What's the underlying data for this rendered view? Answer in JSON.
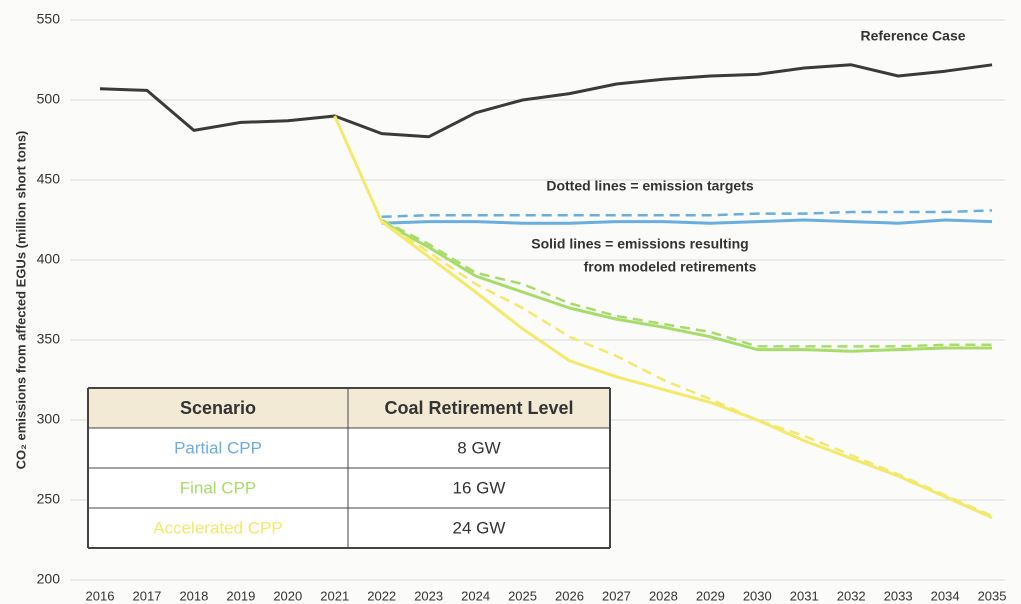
{
  "chart_data": {
    "type": "line",
    "ylabel": "CO₂ emissions from affected EGUs (million short tons)",
    "categories": [
      "2016",
      "2017",
      "2018",
      "2019",
      "2020",
      "2021",
      "2022",
      "2023",
      "2024",
      "2025",
      "2026",
      "2027",
      "2028",
      "2029",
      "2030",
      "2031",
      "2032",
      "2033",
      "2034",
      "2035"
    ],
    "ylim": [
      200,
      550
    ],
    "yticks": [
      200,
      250,
      300,
      350,
      400,
      450,
      500,
      550
    ],
    "grid": true,
    "series": [
      {
        "name": "Reference Case",
        "color": "#3a3a3a",
        "dashed": false,
        "values": [
          507,
          506,
          481,
          486,
          487,
          490,
          479,
          477,
          492,
          500,
          504,
          510,
          513,
          515,
          516,
          520,
          522,
          515,
          518,
          522
        ]
      },
      {
        "color": "#6aaee0",
        "dashed": false,
        "values": [
          null,
          null,
          null,
          null,
          null,
          null,
          423,
          424,
          424,
          423,
          423,
          424,
          424,
          423,
          424,
          425,
          424,
          423,
          425,
          424
        ]
      },
      {
        "color": "#6aaee0",
        "dashed": true,
        "values": [
          null,
          null,
          null,
          null,
          null,
          null,
          427,
          428,
          428,
          428,
          428,
          428,
          428,
          428,
          429,
          429,
          430,
          430,
          430,
          431
        ]
      },
      {
        "color": "#a8dc6a",
        "dashed": false,
        "values": [
          null,
          null,
          null,
          null,
          null,
          null,
          424,
          408,
          390,
          380,
          370,
          363,
          358,
          352,
          344,
          344,
          343,
          344,
          345,
          345
        ]
      },
      {
        "color": "#a8dc6a",
        "dashed": true,
        "values": [
          null,
          null,
          null,
          null,
          null,
          null,
          425,
          410,
          392,
          385,
          373,
          365,
          360,
          355,
          346,
          346,
          346,
          346,
          347,
          347
        ]
      },
      {
        "color": "#f3e96a",
        "dashed": false,
        "values": [
          null,
          null,
          null,
          null,
          null,
          490,
          424,
          402,
          380,
          357,
          337,
          327,
          319,
          311,
          300,
          287,
          276,
          265,
          252,
          239
        ]
      },
      {
        "color": "#f3e96a",
        "dashed": true,
        "values": [
          null,
          null,
          null,
          null,
          null,
          490,
          424,
          405,
          385,
          370,
          352,
          340,
          325,
          313,
          300,
          290,
          278,
          266,
          253,
          240
        ]
      }
    ],
    "annotations": [
      "Dotted lines = emission targets",
      "Solid lines = emissions resulting",
      "from modeled retirements"
    ],
    "table": {
      "header": [
        "Scenario",
        "Coal Retirement Level"
      ],
      "rows": [
        [
          "Partial CPP",
          "8 GW"
        ],
        [
          "Final CPP",
          "16 GW"
        ],
        [
          "Accelerated CPP",
          "24 GW"
        ]
      ]
    }
  }
}
